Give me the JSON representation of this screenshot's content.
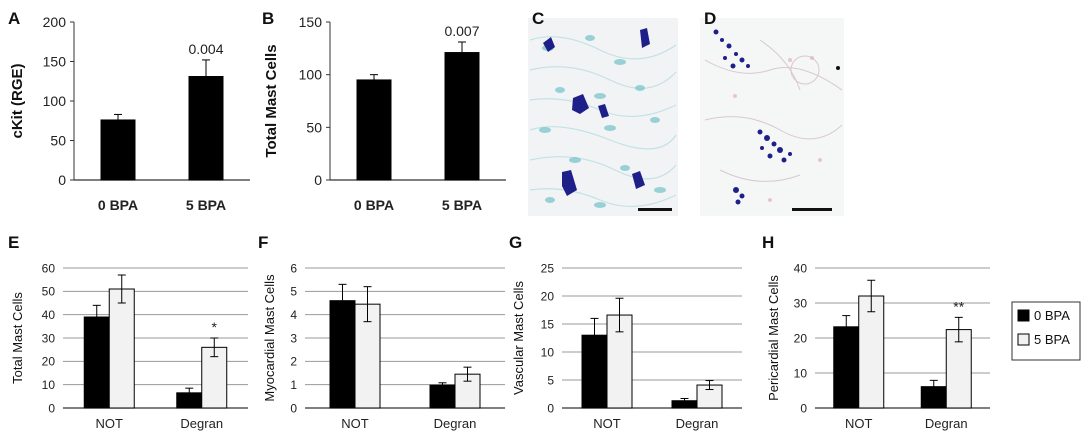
{
  "chart_data": [
    {
      "panel": "A",
      "type": "bar",
      "categories": [
        "0 BPA",
        "5 BPA"
      ],
      "values": [
        76,
        131
      ],
      "errors": [
        7,
        21
      ],
      "ylabel": "cKit (RGE)",
      "ylim": [
        0,
        200
      ],
      "yticks": [
        0,
        50,
        100,
        150,
        200
      ],
      "annotations": [
        "",
        "0.004"
      ],
      "grid": false
    },
    {
      "panel": "B",
      "type": "bar",
      "categories": [
        "0 BPA",
        "5 BPA"
      ],
      "values": [
        95,
        121
      ],
      "errors": [
        5,
        10
      ],
      "ylabel": "Total Mast Cells",
      "ylim": [
        0,
        150
      ],
      "yticks": [
        0,
        50,
        100,
        150
      ],
      "annotations": [
        "",
        "0.007"
      ],
      "grid": false
    },
    {
      "panel": "C",
      "type": "image"
    },
    {
      "panel": "D",
      "type": "image"
    },
    {
      "panel": "E",
      "type": "bar",
      "categories": [
        "NOT",
        "Degran"
      ],
      "series": [
        {
          "name": "0 BPA",
          "values": [
            39,
            6.5
          ],
          "errors": [
            5,
            2
          ]
        },
        {
          "name": "5 BPA",
          "values": [
            51,
            26
          ],
          "errors": [
            6,
            4
          ]
        }
      ],
      "ylabel": "Total Mast Cells",
      "ylim": [
        0,
        60
      ],
      "yticks": [
        0,
        10,
        20,
        30,
        40,
        50,
        60
      ],
      "annotations": [
        "",
        "*"
      ],
      "grid": true
    },
    {
      "panel": "F",
      "type": "bar",
      "categories": [
        "NOT",
        "Degran"
      ],
      "series": [
        {
          "name": "0 BPA",
          "values": [
            4.6,
            0.98
          ],
          "errors": [
            0.7,
            0.1
          ]
        },
        {
          "name": "5 BPA",
          "values": [
            4.45,
            1.45
          ],
          "errors": [
            0.75,
            0.3
          ]
        }
      ],
      "ylabel": "Myocardial Mast Cells",
      "ylim": [
        0,
        6
      ],
      "yticks": [
        0,
        1,
        2,
        3,
        4,
        5,
        6
      ],
      "annotations": [
        "",
        ""
      ],
      "grid": true
    },
    {
      "panel": "G",
      "type": "bar",
      "categories": [
        "NOT",
        "Degran"
      ],
      "series": [
        {
          "name": "0 BPA",
          "values": [
            13,
            1.3
          ],
          "errors": [
            3,
            0.4
          ]
        },
        {
          "name": "5 BPA",
          "values": [
            16.6,
            4.1
          ],
          "errors": [
            3,
            0.8
          ]
        }
      ],
      "ylabel": "Vascular Mast Cells",
      "ylim": [
        0,
        25
      ],
      "yticks": [
        0,
        5,
        10,
        15,
        20,
        25
      ],
      "annotations": [
        "",
        ""
      ],
      "grid": true
    },
    {
      "panel": "H",
      "type": "bar",
      "categories": [
        "NOT",
        "Degran"
      ],
      "series": [
        {
          "name": "0 BPA",
          "values": [
            23.2,
            6.1
          ],
          "errors": [
            3.2,
            1.8
          ]
        },
        {
          "name": "5 BPA",
          "values": [
            32,
            22.4
          ],
          "errors": [
            4.5,
            3.5
          ]
        }
      ],
      "ylabel": "Pericardial Mast Cells",
      "ylim": [
        0,
        40
      ],
      "yticks": [
        0,
        10,
        20,
        30,
        40
      ],
      "annotations": [
        "",
        "**"
      ],
      "grid": true
    }
  ],
  "legend": {
    "placement": "right",
    "entries": [
      "0 BPA",
      "5 BPA"
    ]
  },
  "colors": {
    "bpa0": "#000000",
    "bpa5": "#f2f2f2",
    "stain_dark": "#1f1f8a",
    "stain_light": "#7cc5cc"
  }
}
